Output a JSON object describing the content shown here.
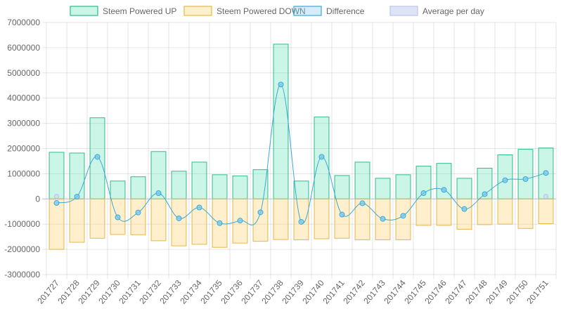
{
  "chart_data": {
    "type": "bar",
    "categories": [
      "201727",
      "201728",
      "201729",
      "201730",
      "201731",
      "201732",
      "201733",
      "201734",
      "201735",
      "201736",
      "201737",
      "201738",
      "201739",
      "201740",
      "201741",
      "201742",
      "201743",
      "201744",
      "201745",
      "201746",
      "201747",
      "201748",
      "201749",
      "201750",
      "201751"
    ],
    "series": [
      {
        "name": "Steem Powered UP",
        "type": "bar",
        "values": [
          1850000,
          1820000,
          3220000,
          710000,
          880000,
          1880000,
          1100000,
          1460000,
          960000,
          910000,
          1160000,
          6140000,
          710000,
          3250000,
          930000,
          1460000,
          820000,
          960000,
          1300000,
          1410000,
          820000,
          1220000,
          1750000,
          1970000,
          2020000
        ],
        "fill": "rgba(48,220,160,0.25)",
        "stroke": "#2ebc8a"
      },
      {
        "name": "Steem Powered DOWN",
        "type": "bar",
        "values": [
          -2000000,
          -1720000,
          -1560000,
          -1410000,
          -1420000,
          -1660000,
          -1860000,
          -1800000,
          -1920000,
          -1750000,
          -1680000,
          -1610000,
          -1620000,
          -1580000,
          -1560000,
          -1620000,
          -1620000,
          -1620000,
          -1050000,
          -1050000,
          -1200000,
          -1020000,
          -1000000,
          -1170000,
          -980000
        ],
        "fill": "rgba(255,205,100,0.32)",
        "stroke": "#e8b84a"
      },
      {
        "name": "Difference",
        "type": "line",
        "values": [
          -160000,
          90000,
          1670000,
          -730000,
          -540000,
          230000,
          -770000,
          -340000,
          -960000,
          -860000,
          -530000,
          4540000,
          -910000,
          1670000,
          -620000,
          -170000,
          -790000,
          -670000,
          230000,
          360000,
          -400000,
          190000,
          740000,
          790000,
          1030000
        ],
        "fill": "rgba(140,200,240,0.35)",
        "stroke": "#3aa9d6"
      },
      {
        "name": "Average per day",
        "type": "point",
        "values": [
          100000,
          null,
          null,
          null,
          null,
          null,
          null,
          null,
          null,
          null,
          null,
          null,
          null,
          null,
          null,
          null,
          null,
          null,
          null,
          null,
          null,
          null,
          null,
          null,
          100000
        ],
        "fill": "rgba(200,210,240,0.6)",
        "stroke": "#b9c6ea"
      }
    ],
    "ylim": [
      -3000000,
      7000000
    ],
    "yticks": [
      "7000000",
      "6000000",
      "5000000",
      "4000000",
      "3000000",
      "2000000",
      "1000000",
      "0",
      "-1000000",
      "-2000000",
      "-3000000"
    ],
    "grid": true,
    "legend_position": "top",
    "xlabel": "",
    "ylabel": "",
    "title": ""
  }
}
